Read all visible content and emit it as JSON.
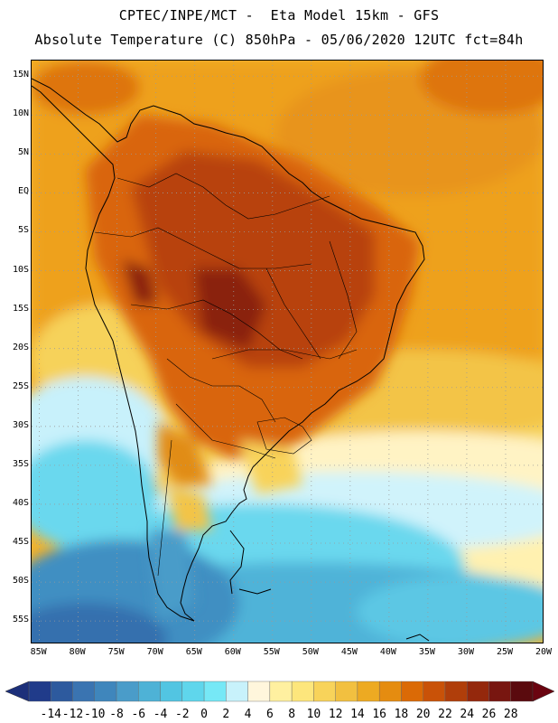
{
  "header": {
    "title_line1": "CPTEC/INPE/MCT -  Eta Model 15km - GFS",
    "title_line2": "Absolute Temperature (C) 850hPa - 05/06/2020 12UTC fct=84h"
  },
  "map": {
    "lat_labels": [
      "15N",
      "10N",
      "5N",
      "EQ",
      "5S",
      "10S",
      "15S",
      "20S",
      "25S",
      "30S",
      "35S",
      "40S",
      "45S",
      "50S",
      "55S"
    ],
    "lon_labels": [
      "85W",
      "80W",
      "75W",
      "70W",
      "65W",
      "60W",
      "55W",
      "50W",
      "45W",
      "40W",
      "35W",
      "30W",
      "25W",
      "20W"
    ],
    "lat_range": [
      17,
      -58
    ],
    "lon_range": [
      -86,
      -20
    ],
    "coastline_color": "#000000",
    "gridline_style": "dotted"
  },
  "colorbar": {
    "labels": [
      "-14",
      "-12",
      "-10",
      "-8",
      "-6",
      "-4",
      "-2",
      "0",
      "2",
      "4",
      "6",
      "8",
      "10",
      "12",
      "14",
      "16",
      "18",
      "20",
      "22",
      "24",
      "26",
      "28"
    ],
    "colors": [
      "#203b8a",
      "#2d5a9e",
      "#3a74b1",
      "#3f86bc",
      "#4a9cc9",
      "#4eb2d6",
      "#52c5e2",
      "#5fd6ec",
      "#76e8f6",
      "#c8f2fb",
      "#fff6dc",
      "#fff0a0",
      "#fde67c",
      "#f8d35a",
      "#f2c040",
      "#edaa22",
      "#e58c10",
      "#db6a06",
      "#c95208",
      "#b03e0a",
      "#94280c",
      "#781610",
      "#5a0a0e"
    ],
    "under_color": "#1c2f7a",
    "over_color": "#6a0410"
  }
}
